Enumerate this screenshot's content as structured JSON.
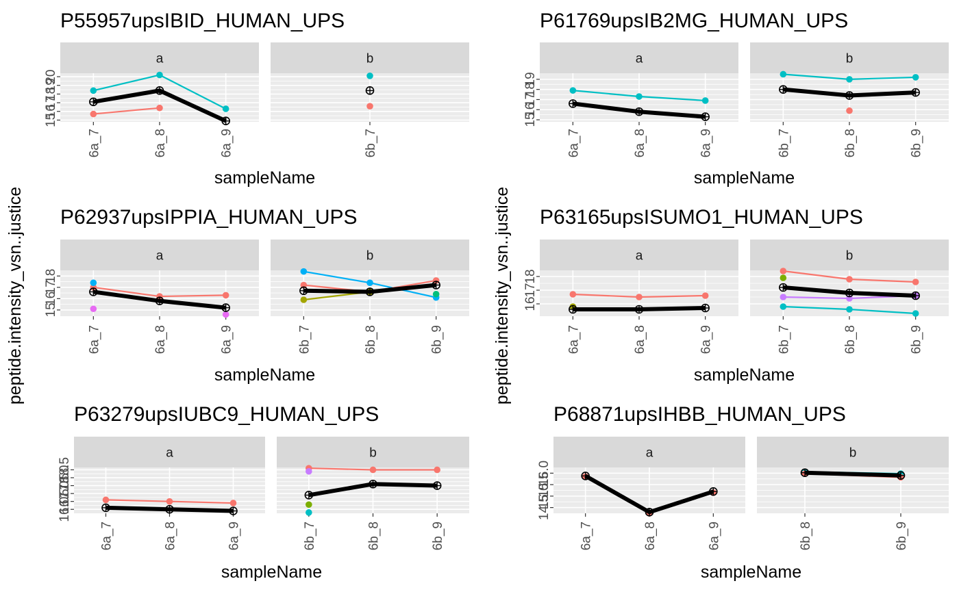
{
  "figure": {
    "ylabel_text": "peptide.intensity_vsn..justice"
  },
  "chart_data": [
    {
      "type": "line",
      "title": "P55957upsIBID_HUMAN_UPS",
      "xlabel": "sampleName",
      "ylabel": "peptide.intensity_vsn..justice",
      "ylim": [
        14.8,
        20.4
      ],
      "yticks": [
        15,
        16,
        17,
        18,
        19,
        20
      ],
      "facets": [
        {
          "label": "a",
          "categories": [
            "6a_7",
            "6a_8",
            "6a_9"
          ],
          "series": [
            {
              "color": "#F8766D",
              "values": [
                15.7,
                16.4,
                null
              ]
            },
            {
              "color": "#00BFC4",
              "values": [
                18.4,
                20.2,
                16.3
              ]
            }
          ],
          "summary": [
            17.1,
            18.4,
            14.9
          ]
        },
        {
          "label": "b",
          "categories": [
            "6b_7"
          ],
          "series": [
            {
              "color": "#F8766D",
              "values": [
                16.6
              ]
            },
            {
              "color": "#00BFC4",
              "values": [
                20.1
              ]
            }
          ],
          "summary": [
            18.4
          ]
        }
      ]
    },
    {
      "type": "line",
      "title": "P61769upsIB2MG_HUMAN_UPS",
      "xlabel": "sampleName",
      "ylabel": "peptide.intensity_vsn..justice",
      "ylim": [
        14.8,
        19.6
      ],
      "yticks": [
        15,
        16,
        17,
        18,
        19
      ],
      "facets": [
        {
          "label": "a",
          "categories": [
            "6a_7",
            "6a_8",
            "6a_9"
          ],
          "series": [
            {
              "color": "#00BFC4",
              "values": [
                17.9,
                17.3,
                16.9
              ]
            }
          ],
          "summary": [
            16.6,
            15.8,
            15.3
          ]
        },
        {
          "label": "b",
          "categories": [
            "6b_7",
            "6b_8",
            "6b_9"
          ],
          "series": [
            {
              "color": "#00BFC4",
              "values": [
                19.5,
                19.0,
                19.2
              ]
            },
            {
              "color": "#F8766D",
              "values": [
                null,
                15.9,
                null
              ]
            }
          ],
          "summary": [
            18.0,
            17.4,
            17.7
          ]
        }
      ]
    },
    {
      "type": "line",
      "title": "P62937upsIPPIA_HUMAN_UPS",
      "xlabel": "sampleName",
      "ylabel": "peptide.intensity_vsn..justice",
      "ylim": [
        14.45,
        18.5
      ],
      "yticks": [
        15,
        16,
        17,
        18
      ],
      "facets": [
        {
          "label": "a",
          "categories": [
            "6a_7",
            "6a_8",
            "6a_9"
          ],
          "series": [
            {
              "color": "#F8766D",
              "values": [
                17.0,
                16.2,
                16.3
              ]
            },
            {
              "color": "#00B0F6",
              "values": [
                17.4,
                null,
                null
              ]
            },
            {
              "color": "#E76BF3",
              "values": [
                15.1,
                null,
                14.6
              ]
            }
          ],
          "summary": [
            16.6,
            15.8,
            15.2
          ]
        },
        {
          "label": "b",
          "categories": [
            "6b_7",
            "6b_8",
            "6b_9"
          ],
          "series": [
            {
              "color": "#00B0F6",
              "values": [
                18.4,
                17.4,
                16.1
              ]
            },
            {
              "color": "#F8766D",
              "values": [
                17.2,
                16.6,
                17.6
              ]
            },
            {
              "color": "#A3A500",
              "values": [
                15.9,
                16.6,
                null
              ]
            },
            {
              "color": "#00BF7D",
              "values": [
                null,
                null,
                16.4
              ]
            }
          ],
          "summary": [
            16.7,
            16.6,
            17.2
          ]
        }
      ]
    },
    {
      "type": "line",
      "title": "P63165upsISUMO1_HUMAN_UPS",
      "xlabel": "sampleName",
      "ylabel": "peptide.intensity_vsn..justice",
      "ylim": [
        15.1,
        18.45
      ],
      "yticks": [
        16,
        17,
        18
      ],
      "facets": [
        {
          "label": "a",
          "categories": [
            "6a_7",
            "6a_8",
            "6a_9"
          ],
          "series": [
            {
              "color": "#F8766D",
              "values": [
                16.7,
                16.5,
                16.6
              ]
            },
            {
              "color": "#A3A500",
              "values": [
                15.8,
                null,
                null
              ]
            }
          ],
          "summary": [
            15.6,
            15.6,
            15.7
          ]
        },
        {
          "label": "b",
          "categories": [
            "6b_7",
            "6b_8",
            "6b_9"
          ],
          "series": [
            {
              "color": "#F8766D",
              "values": [
                18.4,
                17.8,
                17.6
              ]
            },
            {
              "color": "#7CAE00",
              "values": [
                17.9,
                null,
                null
              ]
            },
            {
              "color": "#C77CFF",
              "values": [
                16.5,
                16.4,
                16.6
              ]
            },
            {
              "color": "#00BFC4",
              "values": [
                15.8,
                15.6,
                15.3
              ]
            }
          ],
          "summary": [
            17.2,
            16.8,
            16.6
          ]
        }
      ]
    },
    {
      "type": "line",
      "title": "P63279upsIUBC9_HUMAN_UPS",
      "xlabel": "sampleName",
      "ylabel": "peptide.intensity_vsn..justice",
      "ylim": [
        15.75,
        18.65
      ],
      "yticks": [
        16.0,
        16.5,
        17.0,
        17.5,
        18.0,
        18.5
      ],
      "ytick_labels": [
        "16.0",
        "16.5",
        "17.0",
        "17.5",
        "18.0",
        "18.5"
      ],
      "facets": [
        {
          "label": "a",
          "categories": [
            "6a_7",
            "6a_8",
            "6a_9"
          ],
          "series": [
            {
              "color": "#F8766D",
              "values": [
                16.6,
                16.5,
                16.4
              ]
            }
          ],
          "summary": [
            16.1,
            16.0,
            15.9
          ]
        },
        {
          "label": "b",
          "categories": [
            "6b_7",
            "6b_8",
            "6b_9"
          ],
          "series": [
            {
              "color": "#F8766D",
              "values": [
                18.6,
                18.5,
                18.5
              ]
            },
            {
              "color": "#C77CFF",
              "values": [
                18.4,
                null,
                null
              ]
            },
            {
              "color": "#7CAE00",
              "values": [
                16.3,
                null,
                null
              ]
            },
            {
              "color": "#00BFC4",
              "values": [
                15.8,
                null,
                null
              ]
            }
          ],
          "summary": [
            16.9,
            17.6,
            17.5
          ]
        }
      ]
    },
    {
      "type": "line",
      "title": "P68871upsIHBB_HUMAN_UPS",
      "xlabel": "sampleName",
      "ylabel": "peptide.intensity_vsn..justice",
      "ylim": [
        14.25,
        16.25
      ],
      "yticks": [
        14.5,
        15.0,
        15.5,
        16.0
      ],
      "ytick_labels": [
        "14.5",
        "15.0",
        "15.5",
        "16.0"
      ],
      "facets": [
        {
          "label": "a",
          "categories": [
            "6a_7",
            "6a_8",
            "6a_9"
          ],
          "series": [
            {
              "color": "#F8766D",
              "values": [
                15.85,
                14.25,
                15.15
              ]
            }
          ],
          "summary": [
            15.88,
            14.3,
            15.2
          ]
        },
        {
          "label": "b",
          "categories": [
            "6b_8",
            "6b_9"
          ],
          "series": [
            {
              "color": "#00BFC4",
              "values": [
                16.06,
                15.98
              ]
            },
            {
              "color": "#F8766D",
              "values": [
                15.98,
                15.82
              ]
            }
          ],
          "summary": [
            16.02,
            15.9
          ]
        }
      ]
    }
  ]
}
